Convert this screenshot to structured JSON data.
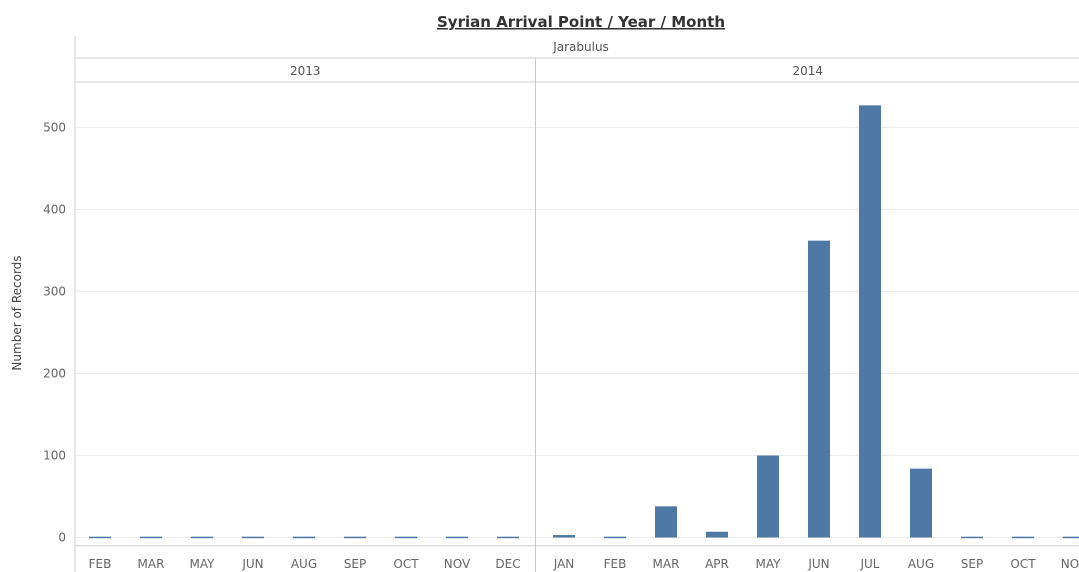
{
  "chart_data": {
    "type": "bar",
    "title": "Syrian Arrival Point / Year / Month",
    "subtitle": "Jarabulus",
    "ylabel": "Number of Records",
    "ylim": [
      -10,
      550
    ],
    "yticks": [
      0,
      100,
      200,
      300,
      400,
      500
    ],
    "grid": true,
    "color": "#4e79a7",
    "groups": [
      {
        "year": "2013",
        "categories": [
          "FEB",
          "MAR",
          "MAY",
          "JUN",
          "AUG",
          "SEP",
          "OCT",
          "NOV",
          "DEC"
        ],
        "values": [
          1,
          1,
          1,
          1,
          1,
          1,
          1,
          1,
          1
        ]
      },
      {
        "year": "2014",
        "categories": [
          "JAN",
          "FEB",
          "MAR",
          "APR",
          "MAY",
          "JUN",
          "JUL",
          "AUG",
          "SEP",
          "OCT",
          "NOV"
        ],
        "values": [
          3,
          1,
          38,
          7,
          100,
          362,
          527,
          84,
          1,
          1,
          1
        ]
      }
    ]
  }
}
